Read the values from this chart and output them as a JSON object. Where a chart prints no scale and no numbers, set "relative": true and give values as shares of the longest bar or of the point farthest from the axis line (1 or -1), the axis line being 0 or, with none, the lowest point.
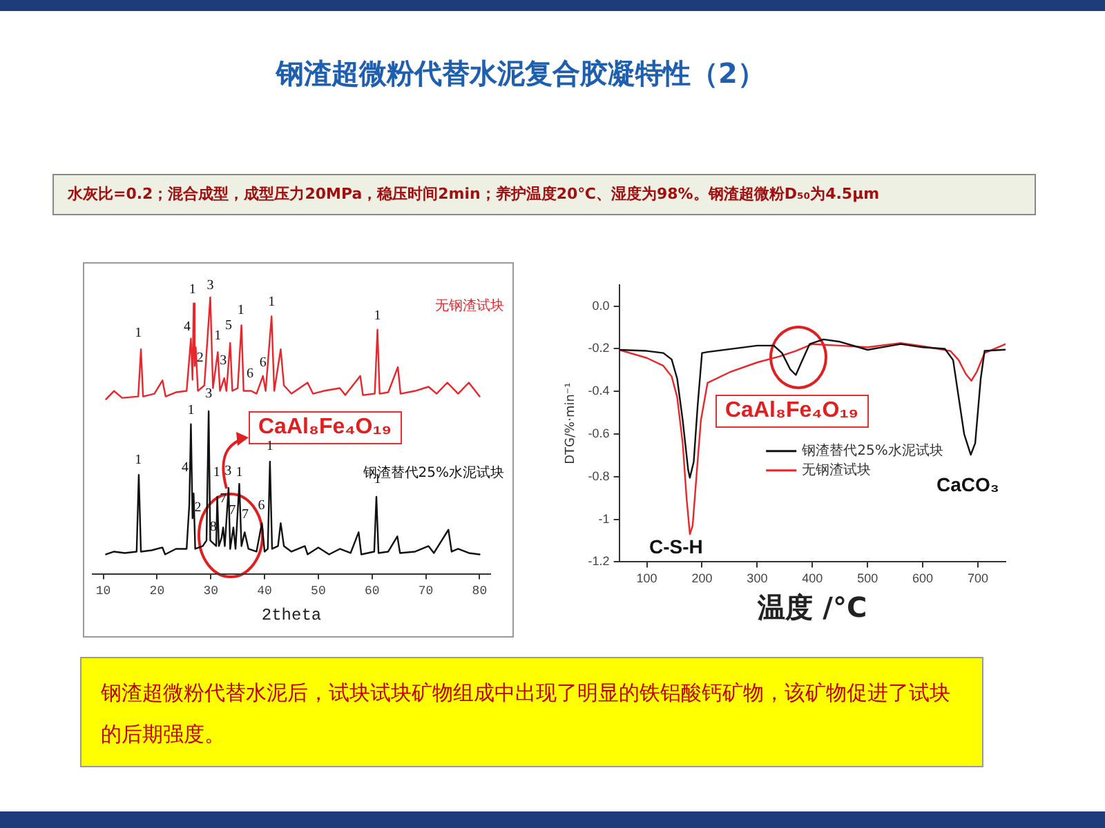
{
  "chart_data": [
    {
      "type": "line",
      "title": "钢渣超微粉代替水泥复合胶凝特性（2）",
      "subtitle": "水灰比=0.2；混合成型，成型压力20MPa，稳压时间2min；养护温度20℃、湿度为98%。钢渣超微粉D₅₀为4.5µm",
      "xlabel": "2theta",
      "relative": true,
      "xlim": [
        8,
        82
      ],
      "xticks": [
        10,
        20,
        30,
        40,
        50,
        60,
        70,
        80
      ],
      "legend": false,
      "series": [
        {
          "name": "无钢渣试块",
          "color": "#e8262b",
          "x": [
            10.5,
            12,
            13.5,
            16.5,
            17,
            17.4,
            19.5,
            21,
            21.6,
            23.5,
            25.5,
            26.3,
            26.6,
            26.8,
            27.0,
            27.2,
            27.6,
            28.8,
            29.9,
            30.4,
            31.3,
            31.7,
            32.5,
            32.9,
            33.6,
            34,
            35,
            35.7,
            36.1,
            37.5,
            38.5,
            39.7,
            40.2,
            41.3,
            41.8,
            43,
            43.6,
            45,
            48,
            49,
            51,
            54,
            55,
            57.8,
            58.3,
            60.5,
            61,
            61.4,
            63,
            64.8,
            65.3,
            68,
            70.5,
            72,
            74,
            76,
            78,
            80
          ],
          "values": [
            0.63,
            0.66,
            0.635,
            0.64,
            0.81,
            0.64,
            0.65,
            0.698,
            0.64,
            0.655,
            0.66,
            0.849,
            0.7,
            0.976,
            0.75,
            0.817,
            0.66,
            0.68,
            1.0,
            0.67,
            0.8,
            0.66,
            0.706,
            0.66,
            0.833,
            0.66,
            0.67,
            0.897,
            0.66,
            0.66,
            0.65,
            0.714,
            0.66,
            0.929,
            0.66,
            0.81,
            0.68,
            0.65,
            0.69,
            0.65,
            0.66,
            0.67,
            0.645,
            0.714,
            0.645,
            0.65,
            0.881,
            0.65,
            0.655,
            0.746,
            0.65,
            0.66,
            0.675,
            0.65,
            0.69,
            0.65,
            0.69,
            0.64
          ]
        },
        {
          "name": "钢渣替代25%水泥试块",
          "color": "#111111",
          "x": [
            10.5,
            12,
            14,
            16.2,
            16.6,
            17,
            19,
            21,
            21.5,
            23.5,
            25.5,
            26,
            26.3,
            26.6,
            26.8,
            27.1,
            28.5,
            29.2,
            29.6,
            29.9,
            31.0,
            31.2,
            31.5,
            32,
            32.3,
            32.6,
            33.3,
            33.6,
            34.2,
            34.6,
            35.3,
            35.7,
            36.3,
            37,
            38.5,
            39.5,
            40,
            40.6,
            41,
            41.4,
            42.5,
            43,
            43.6,
            45,
            47.5,
            48,
            50,
            52,
            54,
            56,
            57.5,
            58,
            60.4,
            60.8,
            61.2,
            63,
            64.7,
            65.2,
            68,
            70.5,
            71.5,
            74.2,
            74.8,
            76,
            78,
            80
          ],
          "values": [
            0.07,
            0.08,
            0.075,
            0.08,
            0.357,
            0.08,
            0.085,
            0.095,
            0.07,
            0.09,
            0.09,
            0.25,
            0.54,
            0.2,
            0.29,
            0.09,
            0.1,
            0.12,
            0.587,
            0.12,
            0.1,
            0.278,
            0.1,
            0.13,
            0.167,
            0.1,
            0.31,
            0.09,
            0.167,
            0.09,
            0.325,
            0.1,
            0.15,
            0.09,
            0.08,
            0.183,
            0.08,
            0.09,
            0.405,
            0.09,
            0.1,
            0.183,
            0.1,
            0.08,
            0.1,
            0.07,
            0.095,
            0.07,
            0.09,
            0.075,
            0.15,
            0.07,
            0.08,
            0.278,
            0.075,
            0.08,
            0.135,
            0.075,
            0.08,
            0.1,
            0.075,
            0.159,
            0.08,
            0.09,
            0.075,
            0.07
          ]
        }
      ],
      "annotations": [
        {
          "text": "1",
          "x": 16.5,
          "y": 0.83
        },
        {
          "text": "4",
          "x": 25.6,
          "y": 0.852
        },
        {
          "text": "1",
          "x": 26.6,
          "y": 0.986
        },
        {
          "text": "2",
          "x": 28.0,
          "y": 0.74
        },
        {
          "text": "3",
          "x": 29.9,
          "y": 1.0
        },
        {
          "text": "1",
          "x": 31.3,
          "y": 0.82
        },
        {
          "text": "3",
          "x": 32.3,
          "y": 0.73
        },
        {
          "text": "5",
          "x": 33.3,
          "y": 0.857
        },
        {
          "text": "1",
          "x": 35.6,
          "y": 0.91
        },
        {
          "text": "6",
          "x": 37.3,
          "y": 0.683
        },
        {
          "text": "6",
          "x": 39.7,
          "y": 0.722
        },
        {
          "text": "1",
          "x": 41.3,
          "y": 0.94
        },
        {
          "text": "1",
          "x": 61.0,
          "y": 0.89
        },
        {
          "text": "1",
          "x": 16.5,
          "y": 0.37
        },
        {
          "text": "4",
          "x": 25.2,
          "y": 0.344
        },
        {
          "text": "1",
          "x": 26.3,
          "y": 0.551
        },
        {
          "text": "2",
          "x": 27.6,
          "y": 0.2
        },
        {
          "text": "3",
          "x": 29.6,
          "y": 0.61
        },
        {
          "text": "1",
          "x": 31.1,
          "y": 0.325
        },
        {
          "text": "3",
          "x": 33.2,
          "y": 0.33
        },
        {
          "text": "7",
          "x": 32.3,
          "y": 0.23
        },
        {
          "text": "8",
          "x": 30.45,
          "y": 0.13
        },
        {
          "text": "7",
          "x": 34.0,
          "y": 0.19
        },
        {
          "text": "7",
          "x": 36.4,
          "y": 0.175
        },
        {
          "text": "1",
          "x": 35.3,
          "y": 0.325
        },
        {
          "text": "6",
          "x": 39.4,
          "y": 0.206
        },
        {
          "text": "1",
          "x": 41.0,
          "y": 0.42
        },
        {
          "text": "1",
          "x": 61.0,
          "y": 0.3
        },
        "CaAl₈Fe₄O₁₉",
        "钢渣超微粉代替水泥后，试块试块矿物组成中出现了明显的铁铝酸钙矿物，该矿物促进了试块的后期强度。"
      ]
    },
    {
      "type": "line",
      "xlabel": "温度 /°C",
      "ylabel": "DTG/%·min⁻¹",
      "xlim": [
        50,
        750
      ],
      "xticks": [
        100,
        200,
        300,
        400,
        500,
        600,
        700
      ],
      "ylim": [
        -1.2,
        0.1
      ],
      "yticks": [
        -1.2,
        -1.0,
        -0.8,
        -0.6,
        -0.4,
        -0.2,
        {
          "value": 0,
          "label": "0.0"
        }
      ],
      "legend": "center",
      "series": [
        {
          "name": "钢渣替代25%水泥试块",
          "color": "#111111",
          "x": [
            50,
            100,
            130,
            145,
            155,
            165,
            175,
            178,
            185,
            192,
            200,
            210,
            300,
            330,
            345,
            360,
            370,
            380,
            395,
            420,
            450,
            500,
            560,
            600,
            640,
            655,
            665,
            675,
            687,
            695,
            705,
            712,
            750
          ],
          "values": [
            -0.205,
            -0.21,
            -0.22,
            -0.25,
            -0.34,
            -0.535,
            -0.77,
            -0.805,
            -0.73,
            -0.47,
            -0.22,
            -0.215,
            -0.185,
            -0.185,
            -0.22,
            -0.297,
            -0.323,
            -0.264,
            -0.178,
            -0.156,
            -0.167,
            -0.205,
            -0.178,
            -0.193,
            -0.2,
            -0.253,
            -0.427,
            -0.6,
            -0.697,
            -0.643,
            -0.34,
            -0.21,
            -0.204
          ]
        },
        {
          "name": "无钢渣试块",
          "color": "#e8262b",
          "x": [
            50,
            100,
            130,
            145,
            155,
            165,
            172,
            178,
            183,
            190,
            198,
            210,
            250,
            300,
            340,
            370,
            400,
            450,
            500,
            560,
            600,
            650,
            665,
            678,
            688,
            698,
            712,
            750
          ],
          "values": [
            -0.205,
            -0.243,
            -0.28,
            -0.33,
            -0.427,
            -0.643,
            -0.9,
            -1.07,
            -1.03,
            -0.795,
            -0.535,
            -0.36,
            -0.31,
            -0.264,
            -0.236,
            -0.21,
            -0.178,
            -0.185,
            -0.193,
            -0.173,
            -0.188,
            -0.21,
            -0.253,
            -0.318,
            -0.35,
            -0.307,
            -0.22,
            -0.178
          ]
        }
      ],
      "annotations": [
        "C-S-H",
        "CaCO₃",
        "CaAl₈Fe₄O₁₉"
      ]
    }
  ]
}
